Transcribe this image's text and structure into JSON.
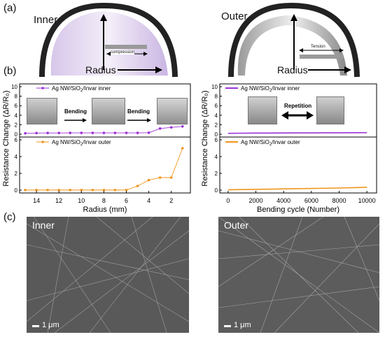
{
  "panel_labels": {
    "a": "(a)",
    "b": "(b)",
    "c": "(c)"
  },
  "panel_a": {
    "inner": {
      "title": "Inner",
      "annotation": "compression",
      "axis_label": "Radius"
    },
    "outer": {
      "title": "Outer",
      "annotation": "Tension",
      "axis_label": "Radius"
    }
  },
  "photos": {
    "step1": "Bending",
    "step2": "Bending",
    "repetition": "Repetition"
  },
  "panel_c": {
    "inner_title": "Inner",
    "outer_title": "Outer",
    "scale_label": "1 μm"
  },
  "colors": {
    "inner_series": "#9b32d6",
    "outer_series": "#f0961e",
    "sem_bg": "#595959"
  },
  "chart_data": [
    {
      "type": "line",
      "id": "radius-chart",
      "ylabel": "Resistance Change (ΔR/R₀)",
      "xlabel": "Radius (mm)",
      "x_ticks": [
        "14",
        "12",
        "10",
        "8",
        "6",
        "4",
        "2"
      ],
      "x_reversed": true,
      "xlim": [
        15.5,
        0.3
      ],
      "panels": [
        {
          "name": "Ag NW/SiO2/Invar inner",
          "color": "#9b32d6",
          "ylim": [
            0,
            10
          ],
          "y_ticks": [
            "0",
            "2",
            "4",
            "6",
            "8",
            "10"
          ],
          "x": [
            15,
            14,
            13,
            12,
            11,
            10,
            9,
            8,
            7,
            6,
            5,
            4,
            3,
            2,
            1
          ],
          "y": [
            0.2,
            0.25,
            0.27,
            0.27,
            0.28,
            0.28,
            0.28,
            0.28,
            0.28,
            0.28,
            0.28,
            0.32,
            1.2,
            1.45,
            1.65
          ]
        },
        {
          "name": "Ag NW/SiO2/Invar outer",
          "color": "#f0961e",
          "ylim": [
            0,
            6
          ],
          "y_ticks": [
            "0",
            "2",
            "4",
            "6"
          ],
          "x": [
            15,
            14,
            13,
            12,
            11,
            10,
            9,
            8,
            7,
            6,
            5,
            4,
            3,
            2,
            1
          ],
          "y": [
            0.02,
            0.02,
            0.02,
            0.02,
            0.02,
            0.02,
            0.02,
            0.02,
            0.02,
            0.02,
            0.5,
            1.2,
            1.5,
            1.5,
            5.0
          ]
        }
      ]
    },
    {
      "type": "line",
      "id": "cycle-chart",
      "ylabel": "Resistance Change (ΔR/R₀)",
      "xlabel": "Bending cycle (Number)",
      "x_ticks": [
        "0",
        "2000",
        "4000",
        "6000",
        "8000",
        "10000"
      ],
      "xlim": [
        -600,
        10700
      ],
      "panels": [
        {
          "name": "Ag NW/SiO2/Invar inner",
          "color": "#9b32d6",
          "ylim": [
            0,
            10
          ],
          "y_ticks": [
            "0",
            "2",
            "4",
            "6",
            "8",
            "10"
          ],
          "x": [
            0,
            1000,
            2000,
            3000,
            4000,
            5000,
            6000,
            7000,
            8000,
            9000,
            10000
          ],
          "y": [
            0.2,
            0.22,
            0.25,
            0.25,
            0.27,
            0.28,
            0.28,
            0.3,
            0.3,
            0.32,
            0.33
          ]
        },
        {
          "name": "Ag NW/SiO2/Invar outer",
          "color": "#f0961e",
          "ylim": [
            0,
            6
          ],
          "y_ticks": [
            "0",
            "2",
            "4",
            "6"
          ],
          "x": [
            0,
            1000,
            2000,
            3000,
            4000,
            5000,
            6000,
            7000,
            8000,
            9000,
            10000
          ],
          "y": [
            0.05,
            0.08,
            0.1,
            0.12,
            0.15,
            0.18,
            0.2,
            0.23,
            0.26,
            0.3,
            0.35
          ]
        }
      ]
    }
  ]
}
